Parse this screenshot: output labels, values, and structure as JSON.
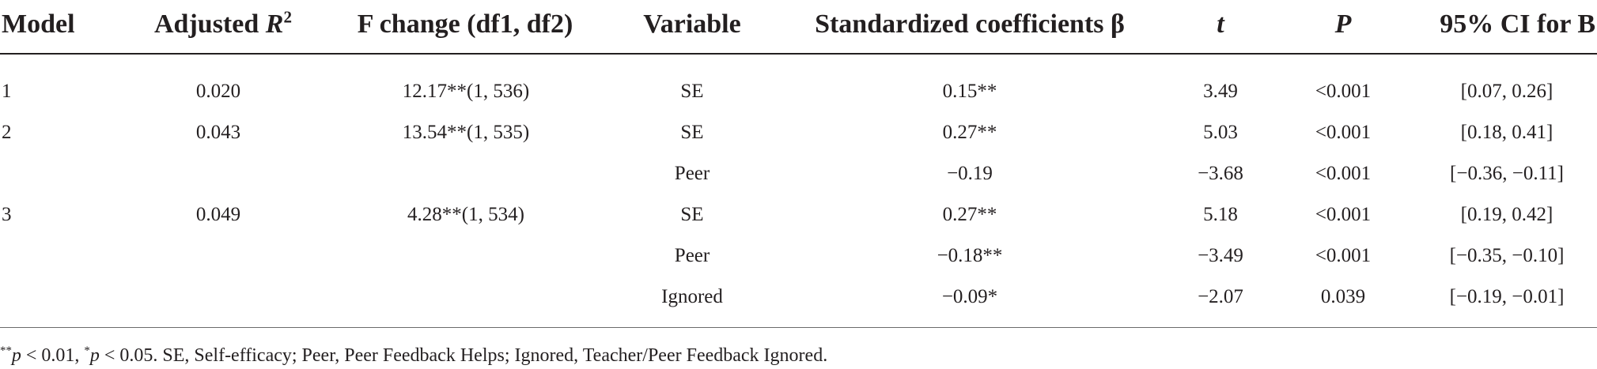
{
  "table": {
    "headers": {
      "model": "Model",
      "adjusted_r2": "Adjusted",
      "adjusted_r2_symbol": "R",
      "adjusted_r2_sup": "2",
      "f_change": "F change (df1, df2)",
      "variable": "Variable",
      "std_coef": "Standardized coefficients β",
      "t": "t",
      "p": "P",
      "ci": "95% CI for B"
    },
    "rows": [
      {
        "model": "1",
        "r2": "0.020",
        "f": "12.17**(1, 536)",
        "variable": "SE",
        "beta": "0.15**",
        "t": "3.49",
        "p": "<0.001",
        "ci": "[0.07, 0.26]"
      },
      {
        "model": "2",
        "r2": "0.043",
        "f": "13.54**(1, 535)",
        "variable": "SE",
        "beta": "0.27**",
        "t": "5.03",
        "p": "<0.001",
        "ci": "[0.18, 0.41]"
      },
      {
        "model": "",
        "r2": "",
        "f": "",
        "variable": "Peer",
        "beta": "−0.19",
        "t": "−3.68",
        "p": "<0.001",
        "ci": "[−0.36, −0.11]"
      },
      {
        "model": "3",
        "r2": "0.049",
        "f": "4.28**(1, 534)",
        "variable": "SE",
        "beta": "0.27**",
        "t": "5.18",
        "p": "<0.001",
        "ci": "[0.19, 0.42]"
      },
      {
        "model": "",
        "r2": "",
        "f": "",
        "variable": "Peer",
        "beta": "−0.18**",
        "t": "−3.49",
        "p": "<0.001",
        "ci": "[−0.35, −0.10]"
      },
      {
        "model": "",
        "r2": "",
        "f": "",
        "variable": "Ignored",
        "beta": "−0.09*",
        "t": "−2.07",
        "p": "0.039",
        "ci": "[−0.19, −0.01]"
      }
    ]
  },
  "footnote": {
    "sig1_stars": "**",
    "sig1_p": "p",
    "sig1_rest": " < 0.01, ",
    "sig2_stars": "*",
    "sig2_p": "p",
    "sig2_rest": " < 0.05. SE, Self-efficacy; Peer, Peer Feedback Helps; Ignored, Teacher/Peer Feedback Ignored."
  }
}
